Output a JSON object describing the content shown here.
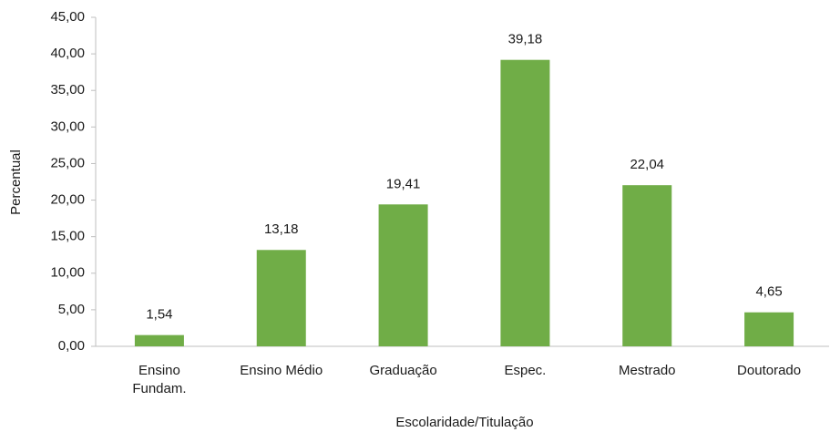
{
  "chart_data": {
    "type": "bar",
    "x_label": "Escolaridade/Titulação",
    "y_label": "Percentual",
    "categories": [
      "Ensino Fundam.",
      "Ensino Médio",
      "Graduação",
      "Espec.",
      "Mestrado",
      "Doutorado"
    ],
    "values": [
      1.54,
      13.18,
      19.41,
      39.18,
      22.04,
      4.65
    ],
    "value_labels": [
      "1,54",
      "13,18",
      "19,41",
      "39,18",
      "22,04",
      "4,65"
    ],
    "color": "#70ad47",
    "ylim": [
      0,
      45
    ],
    "yticks": [
      {
        "value": 0,
        "label": "0,00"
      },
      {
        "value": 5,
        "label": "5,00"
      },
      {
        "value": 10,
        "label": "10,00"
      },
      {
        "value": 15,
        "label": "15,00"
      },
      {
        "value": 20,
        "label": "20,00"
      },
      {
        "value": 25,
        "label": "25,00"
      },
      {
        "value": 30,
        "label": "30,00"
      },
      {
        "value": 35,
        "label": "35,00"
      },
      {
        "value": 40,
        "label": "40,00"
      },
      {
        "value": 45,
        "label": "45,00"
      }
    ],
    "grid": false
  }
}
